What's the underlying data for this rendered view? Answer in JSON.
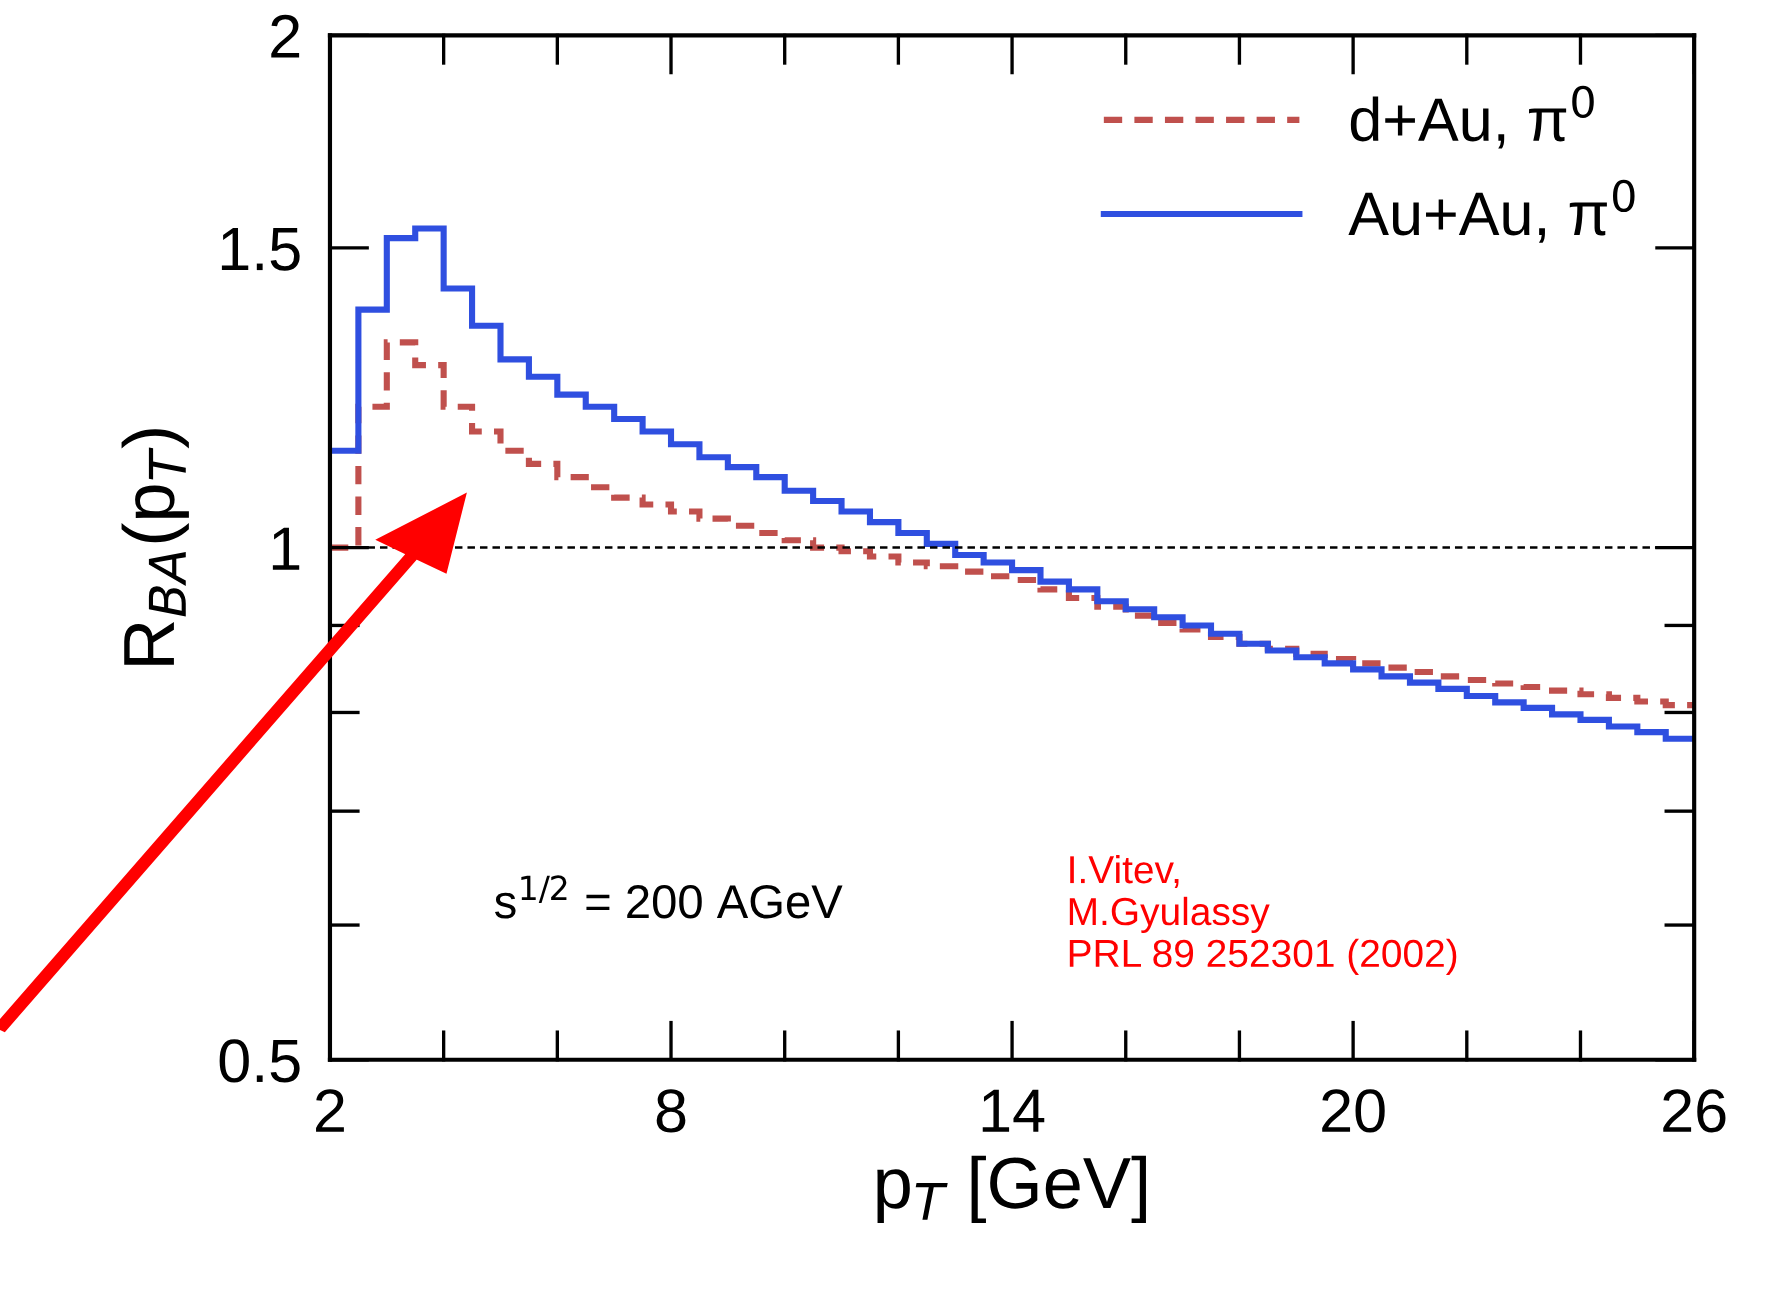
{
  "chart_data": {
    "type": "histogram",
    "xlabel": "p$_{T}$ [GeV]",
    "ylabel": "R$_{BA}$(p$_{T}$)",
    "log": "y",
    "bins": [
      2,
      2.5,
      3,
      3.5,
      4,
      4.5,
      5,
      5.5,
      6,
      6.5,
      7,
      7.5,
      8,
      8.5,
      9,
      9.5,
      10,
      10.5,
      11,
      11.5,
      12,
      12.5,
      13,
      13.5,
      14,
      14.5,
      15,
      15.5,
      16,
      16.5,
      17,
      17.5,
      18,
      18.5,
      19,
      19.5,
      20,
      20.5,
      21,
      21.5,
      22,
      22.5,
      23,
      23.5,
      24,
      24.5,
      25,
      25.5,
      26
    ],
    "series": [
      {
        "name": "d+Au, π$^{0}$",
        "color": "#c0504d",
        "line_style": "dashed",
        "values": [
          1.0,
          1.21,
          1.32,
          1.28,
          1.21,
          1.17,
          1.14,
          1.12,
          1.1,
          1.085,
          1.07,
          1.06,
          1.05,
          1.04,
          1.03,
          1.02,
          1.01,
          1.0,
          0.995,
          0.988,
          0.98,
          0.975,
          0.968,
          0.962,
          0.957,
          0.945,
          0.934,
          0.923,
          0.912,
          0.903,
          0.895,
          0.886,
          0.878,
          0.872,
          0.866,
          0.86,
          0.855,
          0.85,
          0.845,
          0.84,
          0.836,
          0.832,
          0.828,
          0.824,
          0.82,
          0.816,
          0.812,
          0.808
        ]
      },
      {
        "name": "Au+Au, π$^{0}$",
        "color": "#2f4fe0",
        "line_style": "solid",
        "values": [
          1.14,
          1.38,
          1.52,
          1.54,
          1.42,
          1.35,
          1.29,
          1.26,
          1.23,
          1.21,
          1.19,
          1.17,
          1.15,
          1.13,
          1.115,
          1.1,
          1.08,
          1.065,
          1.05,
          1.035,
          1.02,
          1.005,
          0.99,
          0.98,
          0.97,
          0.955,
          0.945,
          0.93,
          0.92,
          0.91,
          0.9,
          0.89,
          0.878,
          0.87,
          0.862,
          0.855,
          0.848,
          0.84,
          0.833,
          0.826,
          0.818,
          0.811,
          0.805,
          0.798,
          0.792,
          0.785,
          0.779,
          0.772
        ]
      }
    ],
    "xlim": [
      2,
      26
    ],
    "xticks": [
      2,
      {
        "value": 4,
        "label": null
      },
      {
        "value": 6,
        "label": null
      },
      8,
      {
        "value": 10,
        "label": null
      },
      {
        "value": 12,
        "label": null
      },
      14,
      {
        "value": 16,
        "label": null
      },
      {
        "value": 18,
        "label": null
      },
      20,
      {
        "value": 22,
        "label": null
      },
      {
        "value": 24,
        "label": null
      },
      26
    ],
    "ylim": [
      0.5,
      2
    ],
    "yticks": [
      0.5,
      {
        "value": 0.6,
        "label": null
      },
      {
        "value": 0.7,
        "label": null
      },
      {
        "value": 0.8,
        "label": null
      },
      {
        "value": 0.9,
        "label": null
      },
      1,
      1.5,
      2
    ],
    "ref_lines": [
      {
        "axis": "y",
        "value": 1,
        "label": null,
        "color": "#000000",
        "line_style": "dashed"
      }
    ],
    "annotations": [
      "s$^{1/2}$ = 200 AGeV",
      "I.Vitev,\nM.Gyulassy\nPRL 89 252301 (2002)"
    ],
    "legend": "top right",
    "grid": false
  }
}
